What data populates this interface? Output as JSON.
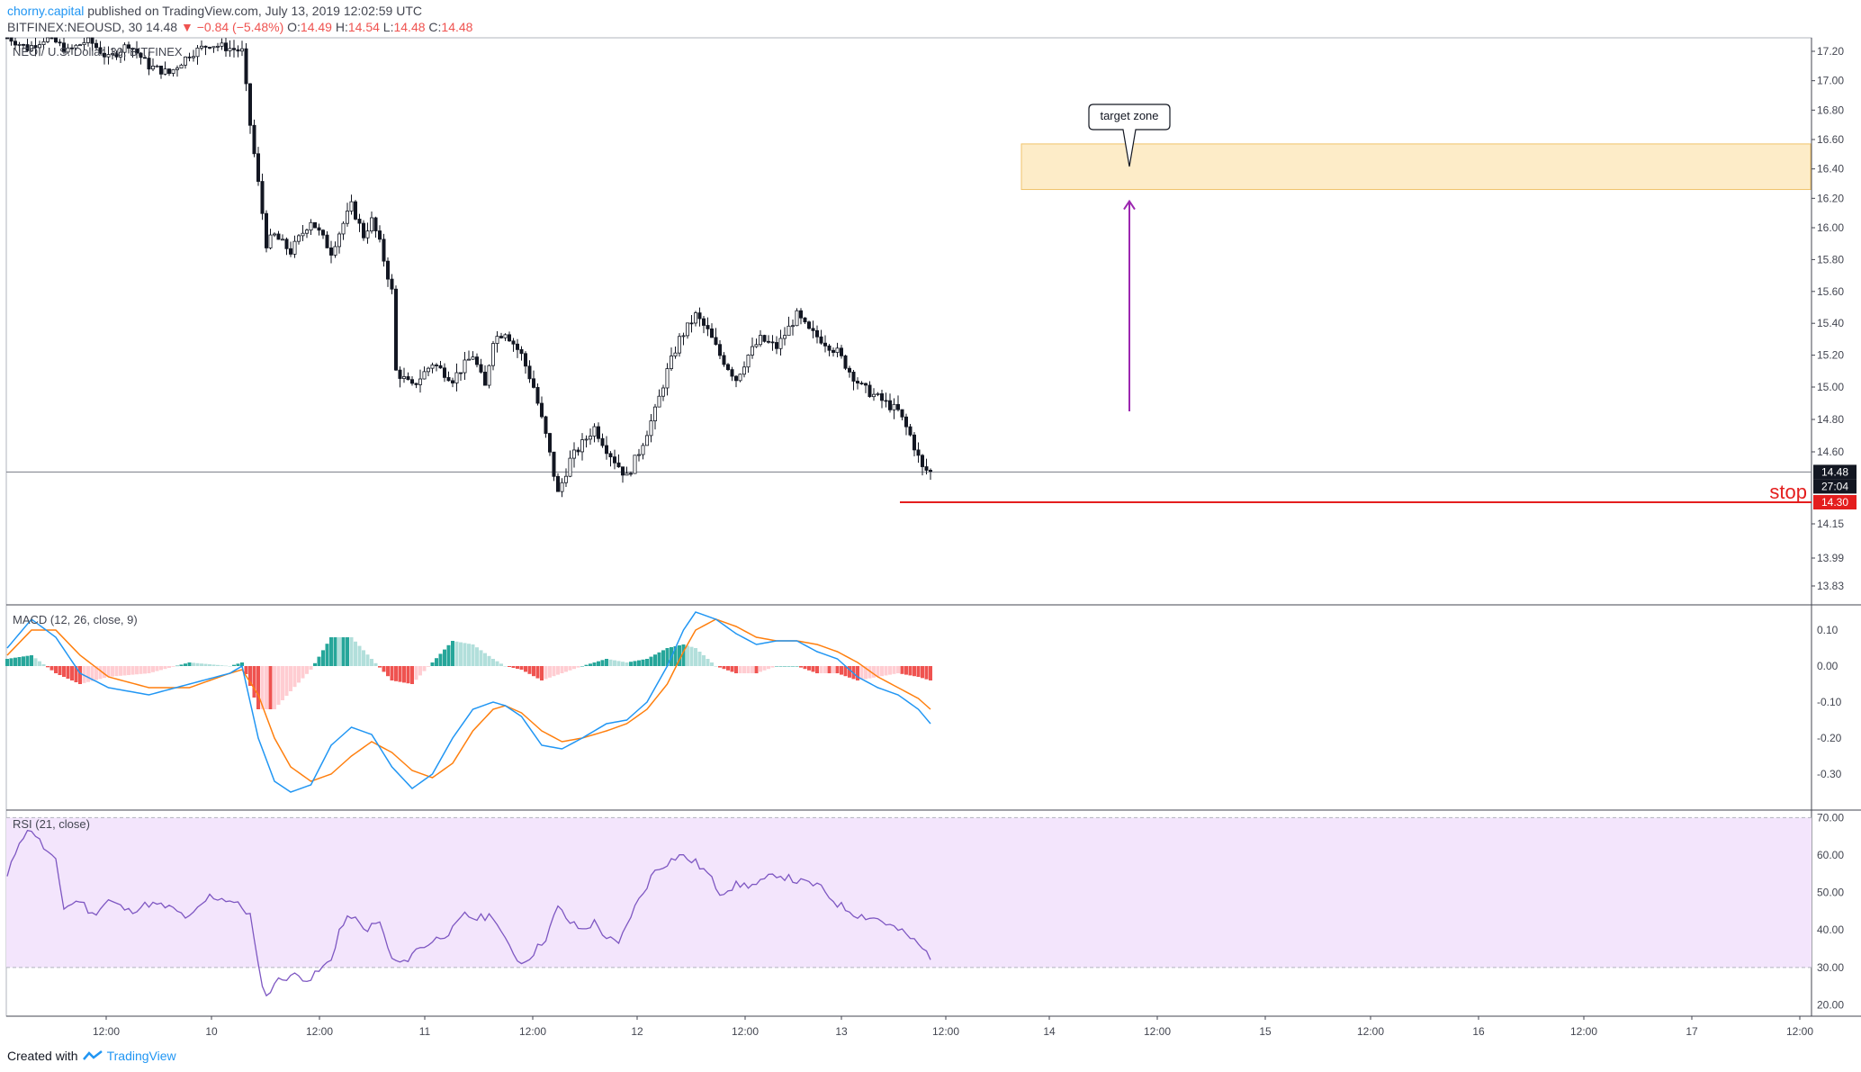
{
  "header": {
    "author": "chorny.capital",
    "published": " published on TradingView.com, July 13, 2019 12:02:59 UTC",
    "symbol": "BITFINEX:NEOUSD, 30",
    "last": "14.48",
    "change": "−0.84 (−5.48%)",
    "open_label": "O:",
    "open": "14.49",
    "high_label": "H:",
    "high": "14.54",
    "low_label": "L:",
    "low": "14.48",
    "close_label": "C:",
    "close": "14.48"
  },
  "footer": {
    "created_with": "Created with",
    "brand": "TradingView"
  },
  "colors": {
    "up": "#131722",
    "down": "#131722",
    "macd": "#2196f3",
    "signal": "#ff7f0e",
    "hist_up_strong": "#26a69a",
    "hist_up_weak": "#b2dfdb",
    "hist_down_strong": "#ef5350",
    "hist_down_weak": "#ffcdd2",
    "rsi": "#7e57c2",
    "rsi_band": "#f3e5fc",
    "target": "#fdecc8",
    "stop": "#e41e1e",
    "arrow": "#9c27b0"
  },
  "chart_data": [
    {
      "type": "candlestick",
      "title": "NEO / U.S. Dollar, 30, BITFINEX",
      "yticks": [
        "17.20",
        "17.00",
        "16.80",
        "16.60",
        "16.40",
        "16.20",
        "16.00",
        "15.80",
        "15.60",
        "15.40",
        "15.20",
        "15.00",
        "14.80",
        "14.60",
        "14.15",
        "13.99",
        "13.83"
      ],
      "ylim": [
        13.7,
        17.25
      ],
      "xticks": [
        "12:00",
        "10",
        "12:00",
        "11",
        "12:00",
        "12",
        "12:00",
        "13",
        "12:00",
        "14",
        "12:00",
        "15",
        "12:00",
        "16",
        "12:00",
        "17",
        "12:00"
      ],
      "price_line": 14.48,
      "price_label": "14.48",
      "countdown": "27:04",
      "stop_value": 14.3,
      "stop_price_label": "14.30",
      "stop_label": "stop",
      "target_zone": {
        "low": 16.26,
        "high": 16.57,
        "label": "target zone"
      },
      "arrow": {
        "from": 14.85,
        "to": 16.18
      },
      "path": [
        [
          0,
          17.3
        ],
        [
          5,
          17.22
        ],
        [
          10,
          17.3
        ],
        [
          15,
          17.2
        ],
        [
          20,
          17.28
        ],
        [
          25,
          17.15
        ],
        [
          30,
          17.25
        ],
        [
          35,
          17.1
        ],
        [
          40,
          17.05
        ],
        [
          45,
          17.18
        ],
        [
          50,
          17.25
        ],
        [
          55,
          17.22
        ],
        [
          58,
          17.2
        ],
        [
          60,
          16.7
        ],
        [
          62,
          16.3
        ],
        [
          64,
          15.9
        ],
        [
          66,
          15.95
        ],
        [
          70,
          15.85
        ],
        [
          75,
          16.05
        ],
        [
          80,
          15.85
        ],
        [
          85,
          16.15
        ],
        [
          88,
          15.95
        ],
        [
          90,
          16.05
        ],
        [
          92,
          15.9
        ],
        [
          95,
          15.6
        ],
        [
          96,
          15.1
        ],
        [
          100,
          15.0
        ],
        [
          105,
          15.15
        ],
        [
          110,
          15.05
        ],
        [
          115,
          15.2
        ],
        [
          118,
          15.0
        ],
        [
          120,
          15.3
        ],
        [
          123,
          15.35
        ],
        [
          127,
          15.2
        ],
        [
          130,
          15.0
        ],
        [
          133,
          14.7
        ],
        [
          136,
          14.35
        ],
        [
          139,
          14.55
        ],
        [
          142,
          14.65
        ],
        [
          145,
          14.75
        ],
        [
          148,
          14.62
        ],
        [
          150,
          14.55
        ],
        [
          153,
          14.45
        ],
        [
          156,
          14.6
        ],
        [
          160,
          14.85
        ],
        [
          163,
          15.1
        ],
        [
          166,
          15.3
        ],
        [
          170,
          15.45
        ],
        [
          173,
          15.35
        ],
        [
          176,
          15.2
        ],
        [
          180,
          15.05
        ],
        [
          183,
          15.2
        ],
        [
          186,
          15.3
        ],
        [
          190,
          15.25
        ],
        [
          195,
          15.45
        ],
        [
          198,
          15.35
        ],
        [
          201,
          15.3
        ],
        [
          205,
          15.22
        ],
        [
          208,
          15.1
        ],
        [
          211,
          15.0
        ],
        [
          214,
          14.95
        ],
        [
          217,
          14.9
        ],
        [
          220,
          14.85
        ],
        [
          223,
          14.7
        ],
        [
          226,
          14.5
        ],
        [
          228,
          14.48
        ]
      ]
    },
    {
      "type": "macd",
      "title": "MACD (12, 26, close, 9)",
      "yticks": [
        "0.10",
        "0.00",
        "-0.10",
        "-0.20",
        "-0.30"
      ],
      "ylim": [
        -0.4,
        0.17
      ],
      "macd_path": [
        [
          0,
          0.05
        ],
        [
          6,
          0.13
        ],
        [
          12,
          0.08
        ],
        [
          18,
          -0.02
        ],
        [
          25,
          -0.06
        ],
        [
          35,
          -0.08
        ],
        [
          45,
          -0.05
        ],
        [
          55,
          -0.02
        ],
        [
          58,
          0.0
        ],
        [
          62,
          -0.2
        ],
        [
          66,
          -0.32
        ],
        [
          70,
          -0.35
        ],
        [
          75,
          -0.33
        ],
        [
          80,
          -0.22
        ],
        [
          85,
          -0.17
        ],
        [
          90,
          -0.19
        ],
        [
          95,
          -0.28
        ],
        [
          100,
          -0.34
        ],
        [
          105,
          -0.3
        ],
        [
          110,
          -0.2
        ],
        [
          115,
          -0.12
        ],
        [
          120,
          -0.1
        ],
        [
          123,
          -0.11
        ],
        [
          127,
          -0.14
        ],
        [
          132,
          -0.22
        ],
        [
          137,
          -0.23
        ],
        [
          142,
          -0.2
        ],
        [
          148,
          -0.16
        ],
        [
          153,
          -0.15
        ],
        [
          158,
          -0.1
        ],
        [
          163,
          0.0
        ],
        [
          167,
          0.1
        ],
        [
          170,
          0.15
        ],
        [
          175,
          0.13
        ],
        [
          180,
          0.09
        ],
        [
          185,
          0.06
        ],
        [
          190,
          0.07
        ],
        [
          195,
          0.07
        ],
        [
          200,
          0.04
        ],
        [
          205,
          0.02
        ],
        [
          210,
          -0.03
        ],
        [
          215,
          -0.06
        ],
        [
          220,
          -0.08
        ],
        [
          225,
          -0.12
        ],
        [
          228,
          -0.16
        ]
      ],
      "signal_path": [
        [
          0,
          0.03
        ],
        [
          6,
          0.1
        ],
        [
          12,
          0.1
        ],
        [
          18,
          0.03
        ],
        [
          25,
          -0.03
        ],
        [
          35,
          -0.06
        ],
        [
          45,
          -0.06
        ],
        [
          55,
          -0.02
        ],
        [
          58,
          -0.01
        ],
        [
          62,
          -0.08
        ],
        [
          66,
          -0.2
        ],
        [
          70,
          -0.28
        ],
        [
          75,
          -0.32
        ],
        [
          80,
          -0.3
        ],
        [
          85,
          -0.25
        ],
        [
          90,
          -0.21
        ],
        [
          95,
          -0.24
        ],
        [
          100,
          -0.29
        ],
        [
          105,
          -0.31
        ],
        [
          110,
          -0.27
        ],
        [
          115,
          -0.18
        ],
        [
          120,
          -0.12
        ],
        [
          123,
          -0.11
        ],
        [
          127,
          -0.13
        ],
        [
          132,
          -0.18
        ],
        [
          137,
          -0.21
        ],
        [
          142,
          -0.2
        ],
        [
          148,
          -0.18
        ],
        [
          153,
          -0.16
        ],
        [
          158,
          -0.12
        ],
        [
          163,
          -0.05
        ],
        [
          167,
          0.04
        ],
        [
          170,
          0.1
        ],
        [
          175,
          0.13
        ],
        [
          180,
          0.11
        ],
        [
          185,
          0.08
        ],
        [
          190,
          0.07
        ],
        [
          195,
          0.07
        ],
        [
          200,
          0.06
        ],
        [
          205,
          0.04
        ],
        [
          210,
          0.01
        ],
        [
          215,
          -0.03
        ],
        [
          220,
          -0.06
        ],
        [
          225,
          -0.09
        ],
        [
          228,
          -0.12
        ]
      ]
    },
    {
      "type": "rsi",
      "title": "RSI (21, close)",
      "yticks": [
        "70.00",
        "60.00",
        "50.00",
        "40.00",
        "30.00",
        "20.00"
      ],
      "ylim": [
        17,
        72
      ],
      "band": [
        30,
        70
      ],
      "path": [
        [
          0,
          54
        ],
        [
          3,
          64
        ],
        [
          6,
          67
        ],
        [
          9,
          62
        ],
        [
          12,
          58
        ],
        [
          14,
          46
        ],
        [
          18,
          48
        ],
        [
          21,
          44
        ],
        [
          25,
          48
        ],
        [
          30,
          45
        ],
        [
          35,
          47
        ],
        [
          40,
          46
        ],
        [
          45,
          43
        ],
        [
          50,
          49
        ],
        [
          55,
          48
        ],
        [
          58,
          46
        ],
        [
          60,
          44
        ],
        [
          62,
          30
        ],
        [
          64,
          22
        ],
        [
          66,
          26
        ],
        [
          70,
          28
        ],
        [
          75,
          27
        ],
        [
          80,
          32
        ],
        [
          82,
          40
        ],
        [
          85,
          44
        ],
        [
          88,
          40
        ],
        [
          92,
          42
        ],
        [
          95,
          32
        ],
        [
          98,
          31
        ],
        [
          100,
          34
        ],
        [
          105,
          37
        ],
        [
          110,
          40
        ],
        [
          113,
          44
        ],
        [
          116,
          43
        ],
        [
          120,
          44
        ],
        [
          123,
          37
        ],
        [
          127,
          31
        ],
        [
          130,
          34
        ],
        [
          133,
          38
        ],
        [
          136,
          46
        ],
        [
          139,
          42
        ],
        [
          142,
          40
        ],
        [
          145,
          42
        ],
        [
          148,
          38
        ],
        [
          151,
          36
        ],
        [
          154,
          44
        ],
        [
          157,
          50
        ],
        [
          160,
          56
        ],
        [
          163,
          58
        ],
        [
          166,
          60
        ],
        [
          170,
          58
        ],
        [
          173,
          55
        ],
        [
          176,
          50
        ],
        [
          180,
          52
        ],
        [
          185,
          52
        ],
        [
          190,
          55
        ],
        [
          195,
          53
        ],
        [
          200,
          52
        ],
        [
          205,
          47
        ],
        [
          210,
          44
        ],
        [
          215,
          43
        ],
        [
          220,
          40
        ],
        [
          223,
          38
        ],
        [
          226,
          35
        ],
        [
          228,
          33
        ]
      ]
    }
  ]
}
